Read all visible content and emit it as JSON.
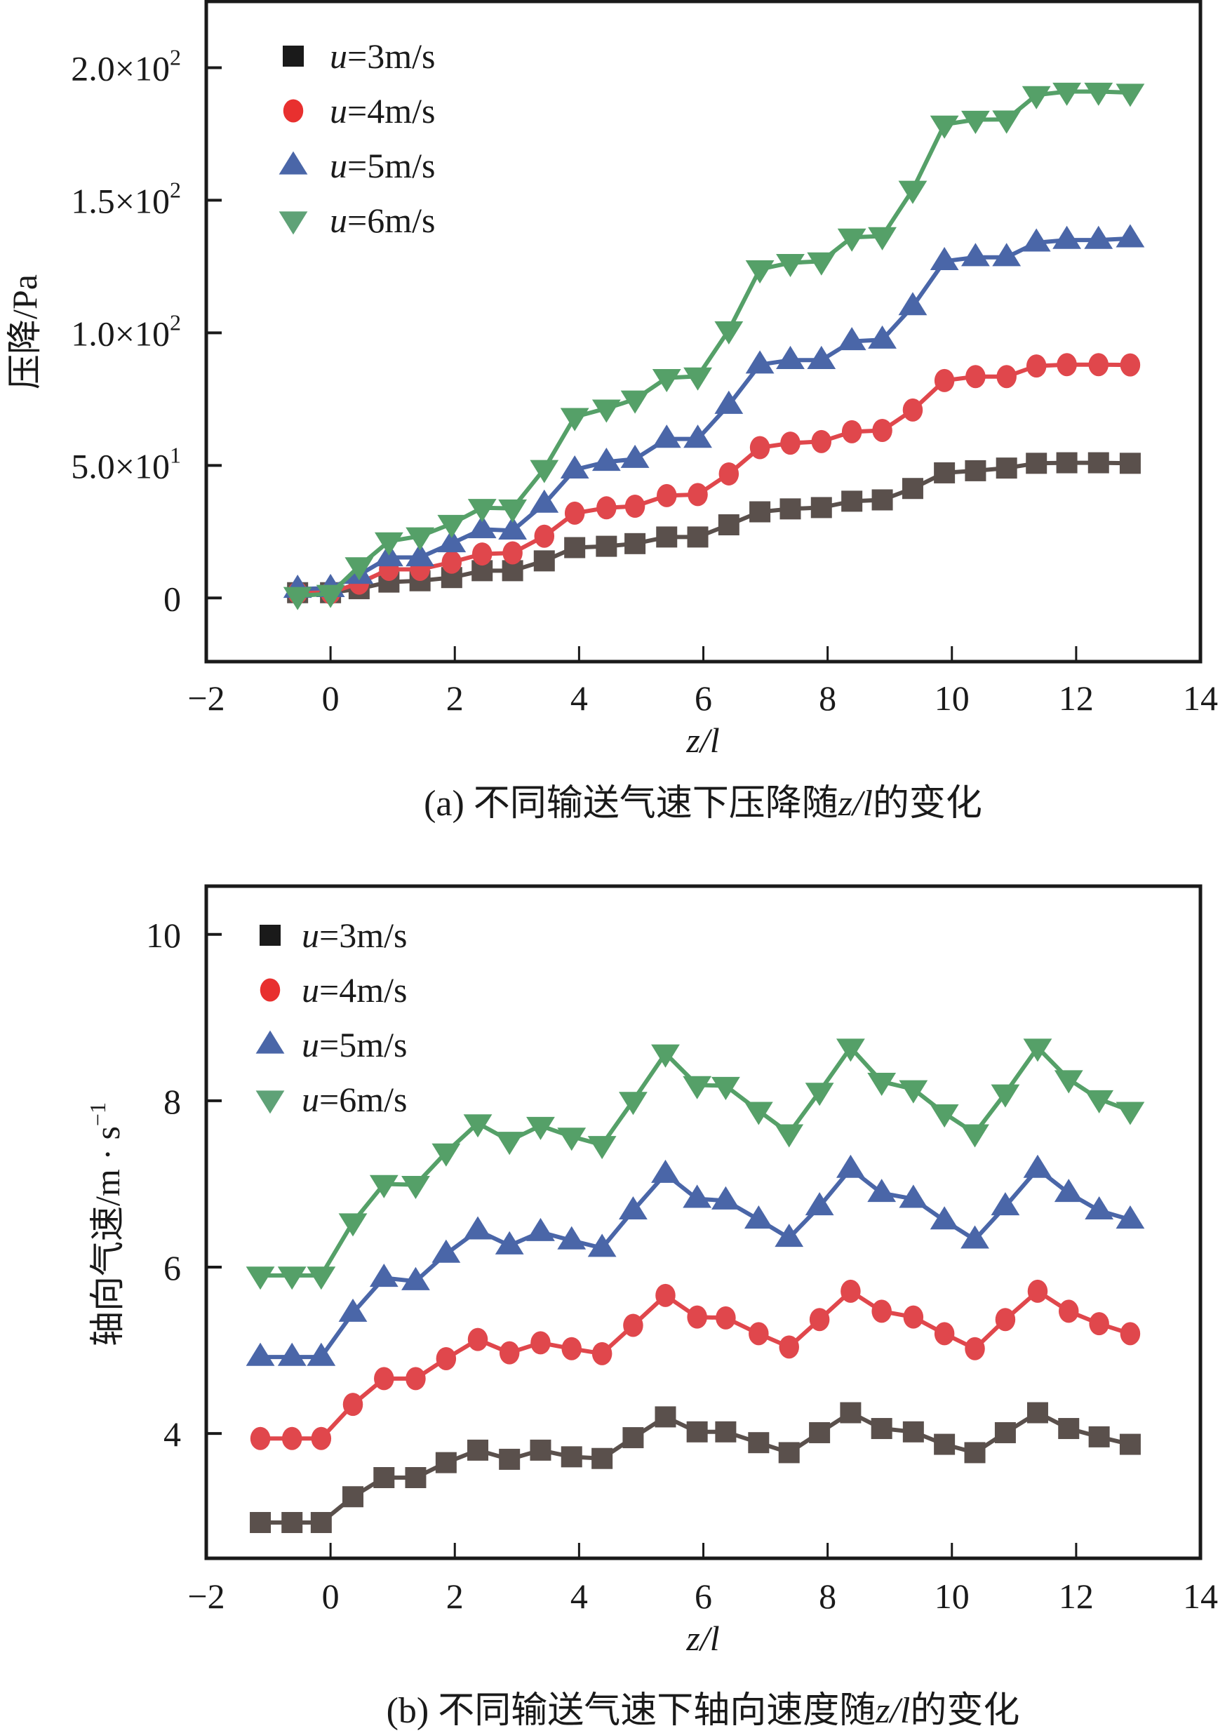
{
  "chart_data": [
    {
      "type": "line",
      "panel": "a",
      "caption": "(a) 不同输送气速下压降随z/l的变化",
      "caption_prefix": "(a) 不同输送气速下压降随",
      "caption_var": "z/l",
      "caption_suffix": "的变化",
      "xlabel": "z/l",
      "ylabel": "压降/Pa",
      "xlim": [
        -2,
        14
      ],
      "ylim": [
        -24,
        225
      ],
      "xticks": [
        -2,
        0,
        2,
        4,
        6,
        8,
        10,
        12,
        14
      ],
      "xtick_labels": [
        "−2",
        "0",
        "2",
        "4",
        "6",
        "8",
        "10",
        "12",
        "14"
      ],
      "yticks": [
        0,
        50,
        100,
        150,
        200
      ],
      "ytick_labels": [
        {
          "mantissa": "0",
          "exp": ""
        },
        {
          "mantissa": "5.0×10",
          "exp": "1"
        },
        {
          "mantissa": "1.0×10",
          "exp": "2"
        },
        {
          "mantissa": "1.5×10",
          "exp": "2"
        },
        {
          "mantissa": "2.0×10",
          "exp": "2"
        }
      ],
      "grid": false,
      "legend_position": "top-left",
      "x": [
        -0.53,
        0.0,
        0.46,
        0.94,
        1.44,
        1.95,
        2.44,
        2.93,
        3.44,
        3.93,
        4.44,
        4.9,
        5.41,
        5.91,
        6.41,
        6.91,
        7.4,
        7.9,
        8.39,
        8.88,
        9.37,
        9.88,
        10.38,
        10.88,
        11.36,
        11.85,
        12.36,
        12.87
      ],
      "series": [
        {
          "name": "u=3m/s",
          "label_var": "u",
          "label_rest": "=3m/s",
          "marker": "square",
          "color": "#5a504c",
          "legend_color": "#1a1a1a",
          "values": [
            2,
            2,
            3.5,
            6,
            6.5,
            7.7,
            10.3,
            10.3,
            14,
            19,
            19.5,
            20.5,
            23,
            23,
            27.6,
            32.5,
            33.6,
            34.1,
            36.5,
            37,
            41.3,
            47.2,
            48,
            49,
            50.8,
            51,
            51,
            50.8
          ]
        },
        {
          "name": "u=4m/s",
          "label_var": "u",
          "label_rest": "=4m/s",
          "marker": "circle",
          "color": "#e0474c",
          "legend_color": "#e8302f",
          "values": [
            2,
            2,
            5.6,
            10.8,
            10.8,
            13.5,
            16.6,
            17,
            23.3,
            32,
            34,
            34.6,
            38.6,
            39,
            46.8,
            56.7,
            58.4,
            59,
            62.7,
            63.2,
            70.9,
            82,
            83.5,
            83.5,
            87.5,
            88,
            88,
            87.9
          ]
        },
        {
          "name": "u=5m/s",
          "label_var": "u",
          "label_rest": "=5m/s",
          "marker": "triangle-up",
          "color": "#4a66a8",
          "legend_color": "#4a66a8",
          "values": [
            3.4,
            3.7,
            8.7,
            15.3,
            15.3,
            20.6,
            25.9,
            25.4,
            35.5,
            48.4,
            51.3,
            52.4,
            60,
            60,
            72.8,
            88,
            89.7,
            89.7,
            96.8,
            97.4,
            110,
            127,
            128.5,
            128.5,
            134,
            135,
            135,
            135.6
          ]
        },
        {
          "name": "u=6m/s",
          "label_var": "u",
          "label_rest": "=6m/s",
          "marker": "triangle-down",
          "color": "#55a068",
          "legend_color": "#5fa277",
          "values": [
            0.8,
            1.6,
            12,
            21.4,
            23.3,
            28,
            34,
            33.8,
            48.7,
            68.3,
            71.5,
            74.9,
            83,
            83.6,
            101,
            124,
            126.4,
            127,
            136,
            136.5,
            154,
            178.6,
            180.4,
            180.5,
            189.7,
            191,
            191,
            190.6
          ]
        }
      ]
    },
    {
      "type": "line",
      "panel": "b",
      "caption": "(b) 不同输送气速下轴向速度随z/l的变化",
      "caption_prefix": "(b) 不同输送气速下轴向速度随",
      "caption_var": "z/l",
      "caption_suffix": "的变化",
      "xlabel": "z/l",
      "ylabel": "轴向气速/m · s",
      "ylabel_sup": "−1",
      "xlim": [
        -2,
        14
      ],
      "ylim": [
        2.5,
        10.58
      ],
      "xticks": [
        -2,
        0,
        2,
        4,
        6,
        8,
        10,
        12,
        14
      ],
      "xtick_labels": [
        "−2",
        "0",
        "2",
        "4",
        "6",
        "8",
        "10",
        "12",
        "14"
      ],
      "yticks": [
        4,
        6,
        8,
        10
      ],
      "ytick_labels": [
        {
          "mantissa": "4",
          "exp": ""
        },
        {
          "mantissa": "6",
          "exp": ""
        },
        {
          "mantissa": "8",
          "exp": ""
        },
        {
          "mantissa": "10",
          "exp": ""
        }
      ],
      "grid": false,
      "legend_position": "top-left",
      "x": [
        -1.13,
        -0.62,
        -0.15,
        0.36,
        0.86,
        1.37,
        1.86,
        2.37,
        2.88,
        3.38,
        3.88,
        4.37,
        4.87,
        5.39,
        5.9,
        6.36,
        6.89,
        7.38,
        7.87,
        8.37,
        8.87,
        9.38,
        9.88,
        10.37,
        10.86,
        11.38,
        11.88,
        12.37,
        12.87
      ],
      "series": [
        {
          "name": "u=3m/s",
          "label_var": "u",
          "label_rest": "=3m/s",
          "marker": "square",
          "color": "#5a504c",
          "legend_color": "#1a1a1a",
          "values": [
            2.93,
            2.93,
            2.93,
            3.24,
            3.47,
            3.47,
            3.65,
            3.8,
            3.69,
            3.8,
            3.72,
            3.7,
            3.95,
            4.2,
            4.02,
            4.02,
            3.89,
            3.77,
            4.01,
            4.25,
            4.06,
            4.02,
            3.87,
            3.77,
            4.01,
            4.25,
            4.06,
            3.96,
            3.87
          ]
        },
        {
          "name": "u=4m/s",
          "label_var": "u",
          "label_rest": "=4m/s",
          "marker": "circle",
          "color": "#e0474c",
          "legend_color": "#e8302f",
          "values": [
            3.94,
            3.94,
            3.94,
            4.35,
            4.66,
            4.66,
            4.9,
            5.13,
            4.97,
            5.09,
            5.02,
            4.96,
            5.3,
            5.66,
            5.4,
            5.39,
            5.2,
            5.04,
            5.37,
            5.71,
            5.47,
            5.4,
            5.2,
            5.02,
            5.37,
            5.71,
            5.47,
            5.32,
            5.2
          ]
        },
        {
          "name": "u=5m/s",
          "label_var": "u",
          "label_rest": "=5m/s",
          "marker": "triangle-up",
          "color": "#4a66a8",
          "legend_color": "#4a66a8",
          "values": [
            4.92,
            4.92,
            4.92,
            5.45,
            5.87,
            5.83,
            6.16,
            6.44,
            6.26,
            6.42,
            6.32,
            6.23,
            6.68,
            7.12,
            6.82,
            6.8,
            6.57,
            6.35,
            6.73,
            7.18,
            6.89,
            6.82,
            6.56,
            6.33,
            6.73,
            7.18,
            6.89,
            6.68,
            6.57
          ]
        },
        {
          "name": "u=6m/s",
          "label_var": "u",
          "label_rest": "=6m/s",
          "marker": "triangle-down",
          "color": "#55a068",
          "legend_color": "#5fa277",
          "values": [
            5.9,
            5.9,
            5.9,
            6.54,
            7.0,
            6.99,
            7.38,
            7.73,
            7.52,
            7.7,
            7.57,
            7.47,
            8.0,
            8.57,
            8.19,
            8.18,
            7.88,
            7.61,
            8.11,
            8.64,
            8.23,
            8.14,
            7.85,
            7.61,
            8.09,
            8.64,
            8.26,
            8.02,
            7.88
          ]
        }
      ]
    }
  ]
}
